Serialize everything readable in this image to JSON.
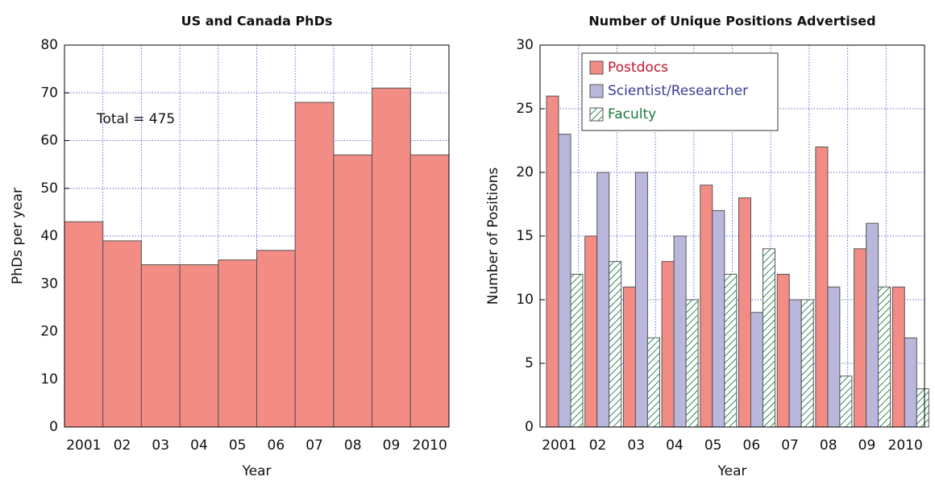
{
  "chart_data": [
    {
      "type": "bar",
      "title": "US and Canada PhDs",
      "x_label": "Year",
      "y_label": "PhDs per year",
      "categories": [
        "2001",
        "02",
        "03",
        "04",
        "05",
        "06",
        "07",
        "08",
        "09",
        "2010"
      ],
      "values": [
        43,
        39,
        34,
        34,
        35,
        37,
        68,
        57,
        71,
        57
      ],
      "color": "#f28c84",
      "ylim": [
        0,
        80
      ],
      "yticks": [
        0,
        10,
        20,
        30,
        40,
        50,
        60,
        70,
        80
      ],
      "grid": true,
      "annotations": [
        "Total = 475"
      ]
    },
    {
      "type": "grouped_bar",
      "title": "Number of Unique Positions Advertised",
      "x_label": "Year",
      "y_label": "Number of Positions",
      "categories": [
        "2001",
        "02",
        "03",
        "04",
        "05",
        "06",
        "07",
        "08",
        "09",
        "2010"
      ],
      "series": [
        {
          "name": "Postdocs",
          "color": "#f28c84",
          "legend_text_color": "#c8102e",
          "values": [
            26,
            15,
            11,
            13,
            19,
            18,
            12,
            22,
            14,
            11
          ]
        },
        {
          "name": "Scientist/Researcher",
          "color": "#b9b7dc",
          "legend_text_color": "#3a3a9a",
          "values": [
            23,
            20,
            20,
            15,
            17,
            9,
            10,
            11,
            16,
            7
          ]
        },
        {
          "name": "Faculty",
          "color": "#2e8b57",
          "legend_text_color": "#1a7a3a",
          "hatch": true,
          "values": [
            12,
            13,
            7,
            10,
            12,
            14,
            10,
            4,
            11,
            3
          ]
        }
      ],
      "ylim": [
        0,
        30
      ],
      "yticks": [
        0,
        5,
        10,
        15,
        20,
        25,
        30
      ],
      "grid": true,
      "legend": "upper left"
    }
  ]
}
